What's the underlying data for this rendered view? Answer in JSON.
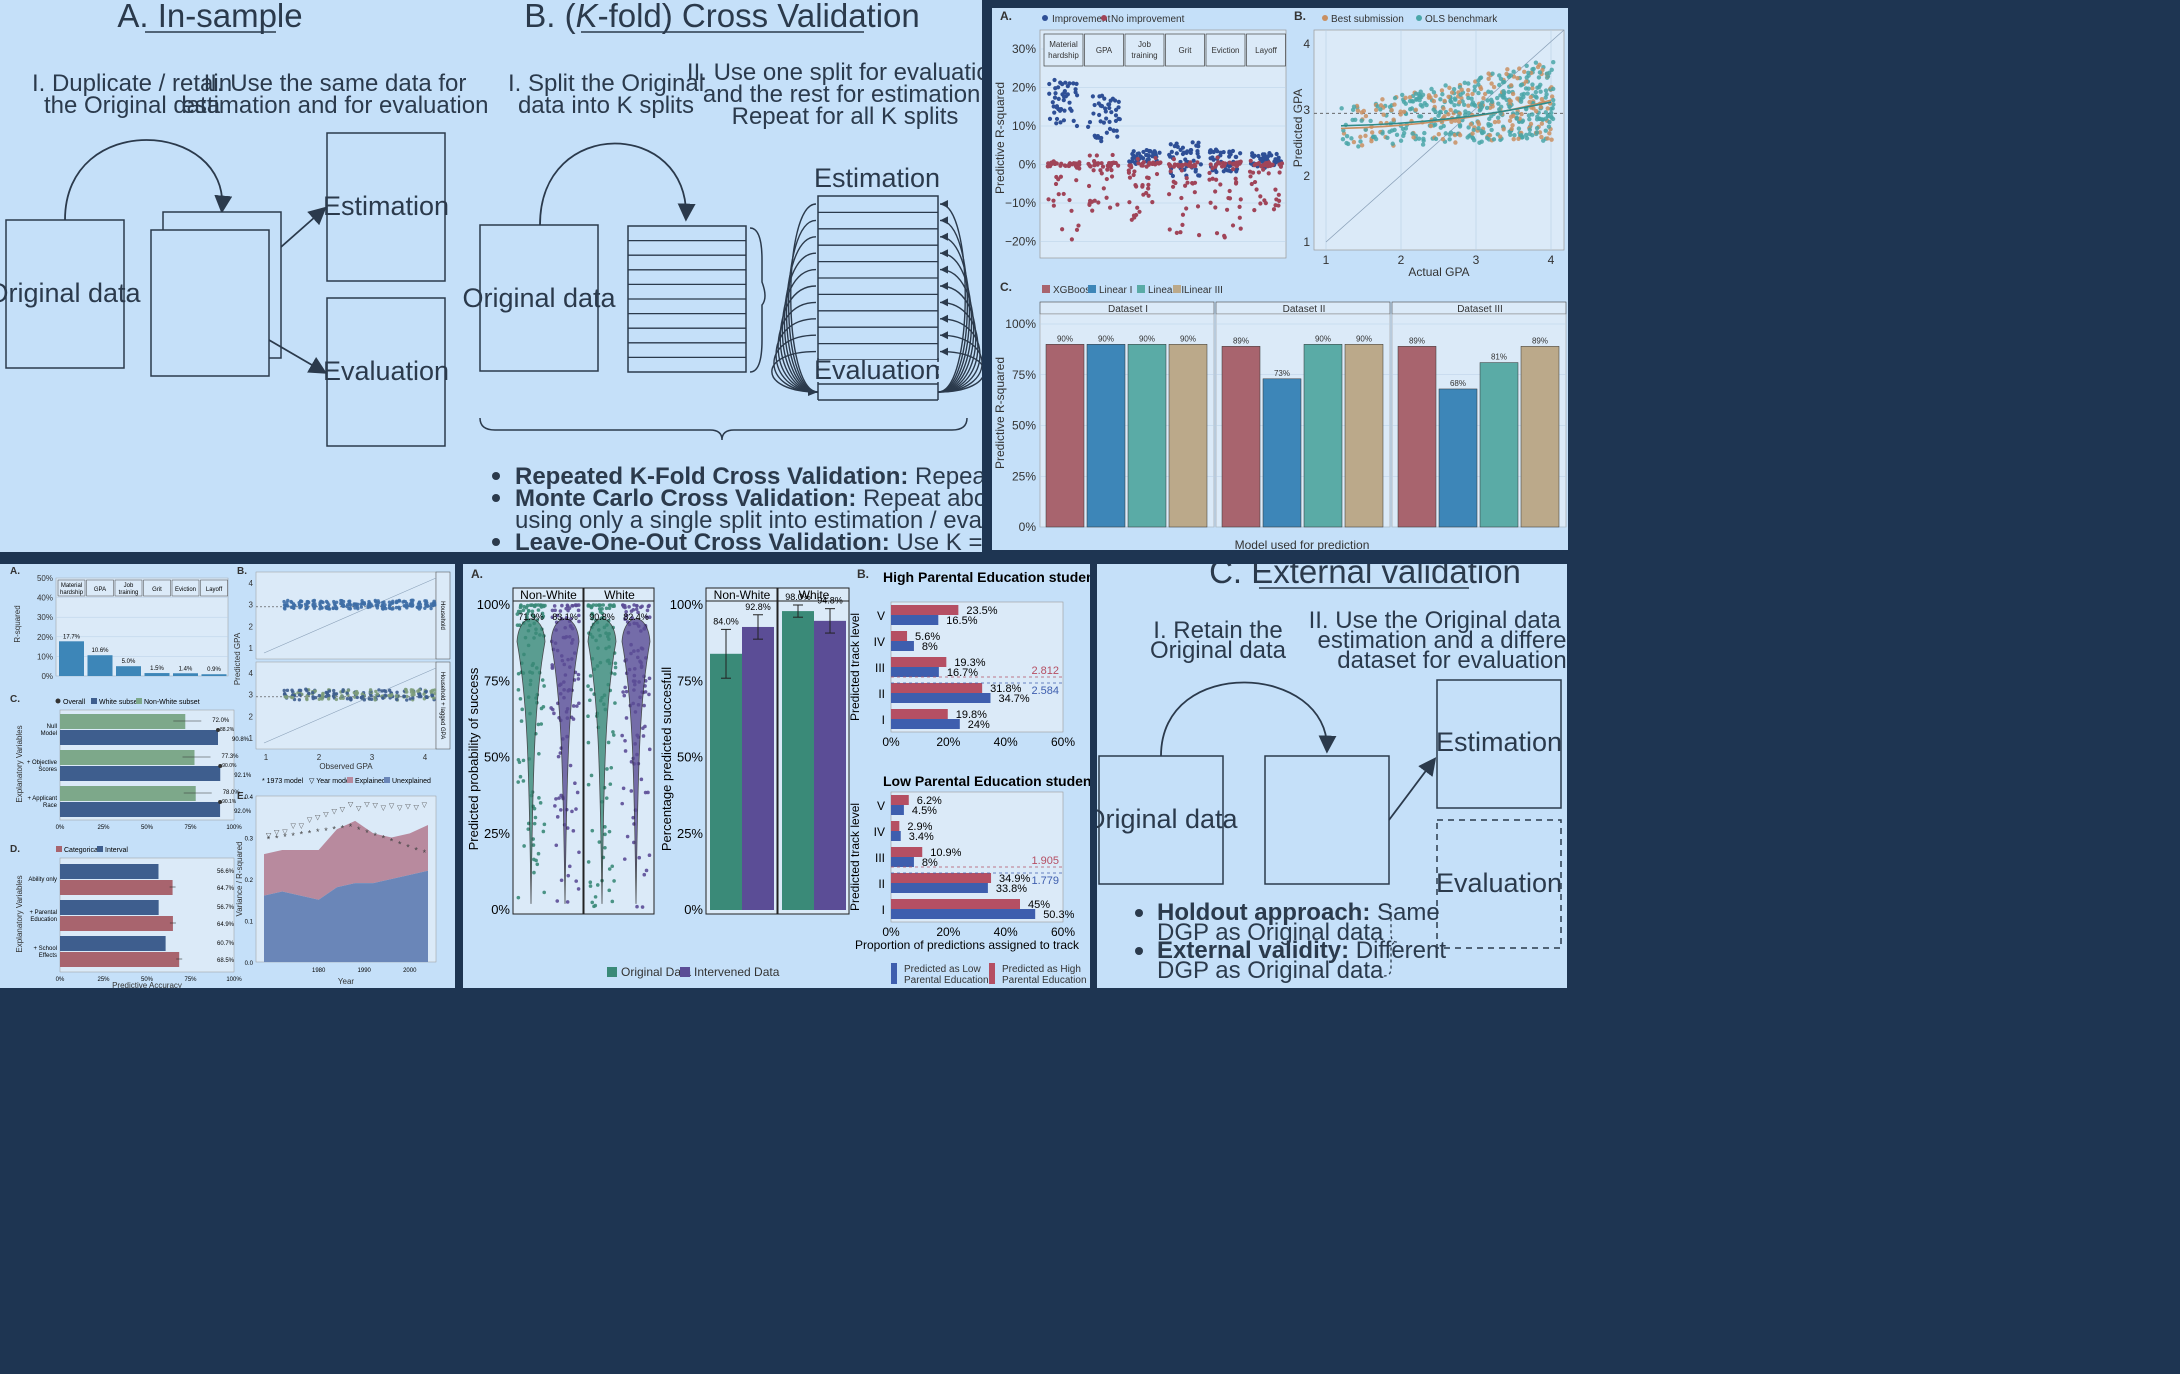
{
  "panel_a": {
    "title": "A. In-sample",
    "step1": [
      "I. Duplicate / retain",
      "the Original data"
    ],
    "step2": [
      "II. Use the same data for",
      "estimation and for evaluation"
    ],
    "original": "Original data",
    "estimation": "Estimation",
    "evaluation": "Evaluation"
  },
  "panel_b": {
    "title_pre": "B. (",
    "title_k": "K",
    "title_post": "-fold) Cross Validation",
    "step1": [
      "I. Split the Original",
      "data into K splits"
    ],
    "step2": [
      "II. Use one split for evaluation",
      "and the rest for estimation.",
      "Repeat for all K splits"
    ],
    "original": "Original data",
    "estimation": "Estimation",
    "evaluation": "Evaluation",
    "bullets": [
      {
        "bold": "Repeated K-Fold Cross Validation:",
        "rest": " Repeat above M times"
      },
      {
        "bold": "Monte Carlo Cross Validation:",
        "rest": " Repeat above M times,"
      },
      {
        "bold": "",
        "rest": "using only a single split into estimation / evaluation per run"
      },
      {
        "bold": "Leave-One-Out Cross Validation:",
        "rest": " Use K = N folds"
      }
    ]
  },
  "panel_c": {
    "title": "C. External validation",
    "step1": [
      "I. Retain the",
      "Original data"
    ],
    "step2": [
      "II. Use the Original data for",
      "estimation and a different",
      "dataset for evaluation"
    ],
    "original": "Original data",
    "estimation": "Estimation",
    "evaluation": "Evaluation",
    "bullets": [
      {
        "bold": "Holdout approach:",
        "rest": " Same",
        "line2": "DGP as Original data"
      },
      {
        "bold": "External validity:",
        "rest": " Different",
        "line2": "DGP as Original data"
      }
    ]
  },
  "fig_tr": {
    "a_label": "A.",
    "a_legend": [
      "Improvement",
      "No improvement"
    ],
    "a_ylabel": "Predictive R-squared",
    "a_facets": [
      "Material hardship",
      "GPA",
      "Job training",
      "Grit",
      "Eviction",
      "Layoff"
    ],
    "a_yticks": [
      "30%",
      "20%",
      "10%",
      "0%",
      "−10%",
      "−20%"
    ],
    "b_label": "B.",
    "b_legend": [
      "Best submission",
      "OLS benchmark"
    ],
    "b_ylabel": "Predicted GPA",
    "b_xlabel": "Actual GPA",
    "b_ticks": [
      "1",
      "2",
      "3",
      "4"
    ],
    "c_label": "C.",
    "c_legend": [
      "XGBoost",
      "Linear I",
      "Linear II",
      "Linear III"
    ],
    "c_ylabel": "Predictive R-squared",
    "c_xlabel": "Model used for prediction",
    "c_yticks": [
      "100%",
      "75%",
      "50%",
      "25%",
      "0%"
    ],
    "colors": {
      "xgb": "#a8646e",
      "lin1": "#3d86b8",
      "lin2": "#5aaba6",
      "lin3": "#bba98a"
    }
  },
  "chart_data": [
    {
      "type": "bar",
      "title": "",
      "ylabel": "Predictive R-squared",
      "xlabel": "Model used for prediction",
      "ylim": [
        0,
        100
      ],
      "facets": [
        "Dataset I",
        "Dataset II",
        "Dataset III"
      ],
      "categories": [
        "XGBoost",
        "Linear I",
        "Linear II",
        "Linear III"
      ],
      "series": [
        {
          "name": "Dataset I",
          "values": [
            90,
            90,
            90,
            90
          ],
          "labels": [
            "90%",
            "90%",
            "90%",
            "90%"
          ]
        },
        {
          "name": "Dataset II",
          "values": [
            89,
            73,
            90,
            90
          ],
          "labels": [
            "89%",
            "73%",
            "90%",
            "90%"
          ]
        },
        {
          "name": "Dataset III",
          "values": [
            89,
            68,
            81,
            89
          ],
          "labels": [
            "89%",
            "68%",
            "81%",
            "89%"
          ]
        }
      ]
    },
    {
      "type": "bar",
      "title": "",
      "ylabel": "R-squared",
      "categories": [
        "Material hardship",
        "GPA",
        "Job training",
        "Grit",
        "Eviction",
        "Layoff"
      ],
      "values": [
        17.7,
        10.6,
        5.0,
        1.5,
        1.4,
        0.9
      ],
      "labels": [
        "17.7%",
        "10.6%",
        "5.0%",
        "1.5%",
        "1.4%",
        "0.9%"
      ],
      "yticks": [
        "50%",
        "40%",
        "30%",
        "20%",
        "10%",
        "0%"
      ],
      "ylim": [
        0,
        50
      ]
    },
    {
      "type": "bar",
      "ylabel": "Explanatory Variables",
      "legend": [
        "Overall",
        "White subset",
        "Non-White subset"
      ],
      "categories": [
        "Null Model",
        "+ Objective Scores",
        "+ Applicant Race"
      ],
      "series": [
        {
          "name": "Non-White subset",
          "values": [
            72.0,
            77.3,
            78.0
          ],
          "labels": [
            "72.0%",
            "77.3%",
            "78.0%"
          ]
        },
        {
          "name": "White subset",
          "values": [
            90.8,
            92.1,
            92.0
          ],
          "labels": [
            "90.8%",
            "92.1%",
            "92.0%"
          ]
        }
      ],
      "overall_labels": [
        "88.2%",
        "90.0%",
        "90.1%"
      ],
      "xticks": [
        "0%",
        "25%",
        "50%",
        "75%",
        "100%"
      ]
    },
    {
      "type": "bar",
      "ylabel": "Explanatory Variables",
      "xlabel": "Predictive Accuracy",
      "legend": [
        "Categorical",
        "Interval"
      ],
      "categories": [
        "Ability only",
        "+ Parental Education",
        "+ School Effects"
      ],
      "series": [
        {
          "name": "Interval",
          "values": [
            56.6,
            56.7,
            60.7
          ],
          "labels": [
            "56.6%",
            "56.7%",
            "60.7%"
          ]
        },
        {
          "name": "Categorical",
          "values": [
            64.7,
            64.9,
            68.5
          ],
          "labels": [
            "64.7%",
            "64.9%",
            "68.5%"
          ]
        }
      ],
      "xticks": [
        "0%",
        "25%",
        "50%",
        "75%",
        "100%"
      ]
    },
    {
      "type": "scatter",
      "ylabel": "Predicted GPA",
      "xlabel": "Observed GPA",
      "facets": [
        "Household",
        "Household + lagged GPA"
      ],
      "xticks": [
        "1",
        "2",
        "3",
        "4"
      ],
      "yticks": [
        "4",
        "3",
        "2",
        "1"
      ]
    },
    {
      "type": "area",
      "ylabel": "Variance / R-squared",
      "xlabel": "Year",
      "legend": [
        "1973 model",
        "Year model",
        "Explained",
        "Unexplained"
      ],
      "xticks": [
        "1980",
        "1990",
        "2000"
      ],
      "yticks": [
        "0.4",
        "0.3",
        "0.2",
        "0.1",
        "0.0"
      ],
      "ylim": [
        0,
        0.4
      ],
      "x": [
        1968,
        1972,
        1976,
        1980,
        1984,
        1988,
        1992,
        1996,
        2000,
        2004
      ],
      "series": [
        {
          "name": "Unexplained",
          "values": [
            0.16,
            0.17,
            0.16,
            0.15,
            0.18,
            0.19,
            0.19,
            0.2,
            0.21,
            0.22
          ]
        },
        {
          "name": "Explained",
          "values": [
            0.1,
            0.1,
            0.11,
            0.12,
            0.14,
            0.15,
            0.12,
            0.1,
            0.1,
            0.11
          ]
        }
      ]
    },
    {
      "type": "bar",
      "ylabel": "Percentage predicted succesfull",
      "facets": [
        "Non-White",
        "White"
      ],
      "series": [
        {
          "name": "Original Data",
          "values": [
            84.0,
            98.0
          ],
          "labels": [
            "84.0%",
            "98.0%"
          ]
        },
        {
          "name": "Intervened Data",
          "values": [
            92.8,
            94.8
          ],
          "labels": [
            "92.8%",
            "94.8%"
          ]
        }
      ],
      "yticks": [
        "100%",
        "75%",
        "50%",
        "25%",
        "0%"
      ],
      "ylim": [
        0,
        100
      ]
    },
    {
      "type": "scatter",
      "ylabel": "Predicted probability of success",
      "facets": [
        "Non-White",
        "White"
      ],
      "labels": [
        "71.9%",
        "83.1%",
        "90.8%",
        "82.4%"
      ],
      "legend": [
        "Original Data",
        "Intervened Data"
      ],
      "yticks": [
        "100%",
        "75%",
        "50%",
        "25%",
        "0%"
      ]
    },
    {
      "type": "bar",
      "title": "High Parental Education students",
      "ylabel": "Predicted track level",
      "categories": [
        "V",
        "IV",
        "III",
        "II",
        "I"
      ],
      "series": [
        {
          "name": "Predicted as High Parental Education",
          "values": [
            23.5,
            5.6,
            19.3,
            31.8,
            19.8
          ],
          "labels": [
            "23.5%",
            "5.6%",
            "19.3%",
            "31.8%",
            "19.8%"
          ]
        },
        {
          "name": "Predicted as Low Parental Education",
          "values": [
            16.5,
            8,
            16.7,
            34.7,
            24
          ],
          "labels": [
            "16.5%",
            "8%",
            "16.7%",
            "34.7%",
            "24%"
          ]
        }
      ],
      "means": [
        "2.812",
        "2.584"
      ],
      "xticks": [
        "0%",
        "20%",
        "40%",
        "60%"
      ],
      "xlim": [
        0,
        60
      ]
    },
    {
      "type": "bar",
      "title": "Low Parental Education students",
      "ylabel": "Predicted track level",
      "xlabel": "Proportion of predictions assigned to track",
      "categories": [
        "V",
        "IV",
        "III",
        "II",
        "I"
      ],
      "series": [
        {
          "name": "Predicted as High Parental Education",
          "values": [
            6.2,
            2.9,
            10.9,
            34.9,
            45
          ],
          "labels": [
            "6.2%",
            "2.9%",
            "10.9%",
            "34.9%",
            "45%"
          ]
        },
        {
          "name": "Predicted as Low Parental Education",
          "values": [
            4.5,
            3.4,
            8,
            33.8,
            50.3
          ],
          "labels": [
            "4.5%",
            "3.4%",
            "8%",
            "33.8%",
            "50.3%"
          ]
        }
      ],
      "means": [
        "1.905",
        "1.779"
      ],
      "xticks": [
        "0%",
        "20%",
        "40%",
        "60%"
      ],
      "xlim": [
        0,
        60
      ]
    }
  ],
  "fig_bl": {
    "a": "A.",
    "b": "B.",
    "c": "C.",
    "d": "D.",
    "e": "E."
  },
  "fig_bm": {
    "a": "A.",
    "b": "B.",
    "legend": [
      "Original Data",
      "Intervened Data"
    ],
    "legend_b": [
      "Predicted as Low",
      "Parental Education",
      "Predicted as High",
      "Parental Education"
    ],
    "colors": {
      "orig": "#3a8a78",
      "interv": "#5b4d96",
      "high": "#b54f63",
      "low": "#3e5eae"
    }
  }
}
